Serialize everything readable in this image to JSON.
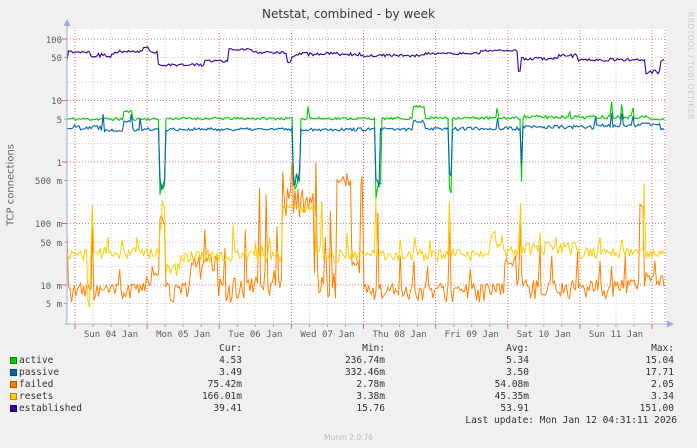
{
  "title": "Netstat, combined - by week",
  "y_axis": {
    "title": "TCP connections",
    "ticks": [
      {
        "label": "100",
        "value": 100,
        "major": true
      },
      {
        "label": "50",
        "value": 50,
        "major": false
      },
      {
        "label": "10",
        "value": 10,
        "major": true
      },
      {
        "label": "5",
        "value": 5,
        "major": false
      },
      {
        "label": "1",
        "value": 1,
        "major": true
      },
      {
        "label": "500 m",
        "value": 0.5,
        "major": false
      },
      {
        "label": "100 m",
        "value": 0.1,
        "major": true
      },
      {
        "label": "50 m",
        "value": 0.05,
        "major": false
      },
      {
        "label": "10 m",
        "value": 0.01,
        "major": true
      },
      {
        "label": "5 m",
        "value": 0.005,
        "major": false
      }
    ],
    "minor_gridlines": [
      50,
      20,
      5,
      2,
      0.5,
      0.2,
      0.05,
      0.02,
      0.005
    ]
  },
  "x_axis": {
    "labels": [
      "Sun 04 Jan",
      "Mon 05 Jan",
      "Tue 06 Jan",
      "Wed 07 Jan",
      "Thu 08 Jan",
      "Fri 09 Jan",
      "Sat 10 Jan",
      "Sun 11 Jan"
    ]
  },
  "legend": {
    "columns": [
      "Cur:",
      "Min:",
      "Avg:",
      "Max:"
    ],
    "rows": [
      {
        "label": "active",
        "color": "#00CC00",
        "cur": "4.53",
        "min": "236.74m",
        "avg": "5.34",
        "max": "15.04"
      },
      {
        "label": "passive",
        "color": "#0066B3",
        "cur": "3.49",
        "min": "332.46m",
        "avg": "3.50",
        "max": "17.71"
      },
      {
        "label": "failed",
        "color": "#FF8000",
        "cur": "75.42m",
        "min": "2.78m",
        "avg": "54.08m",
        "max": "2.05"
      },
      {
        "label": "resets",
        "color": "#FFCC00",
        "cur": "166.01m",
        "min": "3.38m",
        "avg": "45.35m",
        "max": "3.34"
      },
      {
        "label": "established",
        "color": "#330099",
        "cur": "39.41",
        "min": "15.76",
        "avg": "53.91",
        "max": "151.00"
      }
    ],
    "last_update": "Last update: Mon Jan 12 04:31:11 2026"
  },
  "watermarks": {
    "right": "RRDTOOL / TOBI OETIKER",
    "bottom": "Munin 2.0.76"
  },
  "colors": {
    "background": "#F0F0F0",
    "canvas": "#FFFFFF",
    "major_grid": "#E07D7D",
    "minor_grid": "#CACACA",
    "axis": "#A5ABE0",
    "axis_text": "#5E5E5E",
    "legend_text": "#333333"
  },
  "chart_data": {
    "type": "line",
    "log_scale": true,
    "ylabel": "TCP connections",
    "y_displayed_range": [
      0.0023,
      140
    ],
    "x_unit": "days since Sun 04 Jan 00:00 (visible span -0.11 to 8.18, ends Mon Jan 12 ~04:30)",
    "grid": "red dotted decades / gray dotted 2-5 steps, red dotted at midnights, gray dotted at 6h",
    "series": [
      {
        "name": "active",
        "color": "#00CC00",
        "seed": 11,
        "width": 1.1,
        "segments": [
          [
            -0.11,
            0.67,
            5.0,
            0.06
          ],
          [
            0.67,
            0.8,
            6.6,
            0.05
          ],
          [
            0.8,
            1.16,
            5.0,
            0.05
          ],
          [
            1.16,
            1.26,
            0.38,
            0.25
          ],
          [
            1.26,
            3.02,
            5.1,
            0.05
          ],
          [
            3.02,
            3.13,
            0.5,
            0.3
          ],
          [
            3.13,
            4.16,
            5.1,
            0.05
          ],
          [
            4.16,
            4.24,
            0.36,
            0.3
          ],
          [
            4.24,
            4.69,
            5.1,
            0.05
          ],
          [
            4.69,
            4.85,
            8.0,
            0.04
          ],
          [
            4.85,
            5.18,
            5.2,
            0.05
          ],
          [
            5.18,
            5.23,
            0.4,
            0.3
          ],
          [
            5.23,
            6.17,
            5.2,
            0.05
          ],
          [
            6.17,
            6.21,
            0.6,
            0.3
          ],
          [
            6.21,
            7.97,
            5.4,
            0.07
          ],
          [
            7.97,
            8.19,
            4.9,
            0.05
          ]
        ],
        "spikes": [
          [
            3.23,
            8.0
          ],
          [
            5.85,
            7.5
          ],
          [
            6.86,
            6.5
          ],
          [
            7.44,
            9.5
          ],
          [
            7.58,
            8.6
          ],
          [
            7.74,
            7.6
          ]
        ]
      },
      {
        "name": "passive",
        "color": "#0066B3",
        "seed": 22,
        "width": 1.1,
        "segments": [
          [
            -0.11,
            0.35,
            3.7,
            0.1
          ],
          [
            0.35,
            0.67,
            3.3,
            0.06
          ],
          [
            0.67,
            0.8,
            4.7,
            0.05
          ],
          [
            0.8,
            1.16,
            3.4,
            0.07
          ],
          [
            1.16,
            1.26,
            0.45,
            0.25
          ],
          [
            1.26,
            3.02,
            3.4,
            0.06
          ],
          [
            3.02,
            3.12,
            0.55,
            0.3
          ],
          [
            3.12,
            4.16,
            3.4,
            0.06
          ],
          [
            4.16,
            4.23,
            0.45,
            0.3
          ],
          [
            4.23,
            4.69,
            3.4,
            0.06
          ],
          [
            4.69,
            4.85,
            4.6,
            0.05
          ],
          [
            4.85,
            5.18,
            3.5,
            0.06
          ],
          [
            5.18,
            5.23,
            0.6,
            0.35
          ],
          [
            5.23,
            6.17,
            3.5,
            0.07
          ],
          [
            6.17,
            6.21,
            0.8,
            0.3
          ],
          [
            6.21,
            7.21,
            3.7,
            0.07
          ],
          [
            7.21,
            7.83,
            3.9,
            0.06
          ],
          [
            7.83,
            8.11,
            4.1,
            0.05
          ],
          [
            8.11,
            8.19,
            3.5,
            0.05
          ]
        ],
        "spikes": [
          [
            0.39,
            6.0
          ],
          [
            0.78,
            6.0
          ],
          [
            0.9,
            5.2
          ],
          [
            5.86,
            5.2
          ],
          [
            7.22,
            5.6
          ],
          [
            7.44,
            6.2
          ],
          [
            7.58,
            6.2
          ],
          [
            7.74,
            5.6
          ]
        ]
      },
      {
        "name": "failed",
        "color": "#FF8000",
        "seed": 33,
        "width": 1.0,
        "segments": [
          [
            -0.11,
            0.9,
            0.008,
            0.35
          ],
          [
            0.9,
            1.16,
            0.012,
            0.4
          ],
          [
            1.16,
            1.26,
            0.09,
            0.5
          ],
          [
            1.26,
            1.59,
            0.008,
            0.35
          ],
          [
            1.59,
            1.98,
            0.022,
            0.45
          ],
          [
            1.98,
            2.5,
            0.009,
            0.45
          ],
          [
            2.5,
            2.88,
            0.012,
            0.5
          ],
          [
            2.88,
            3.3,
            0.25,
            0.5
          ],
          [
            3.3,
            3.62,
            0.012,
            0.5
          ],
          [
            3.62,
            3.84,
            0.5,
            0.25
          ],
          [
            3.84,
            3.95,
            0.02,
            0.4
          ],
          [
            3.95,
            3.99,
            0.45,
            0.3
          ],
          [
            3.99,
            5.96,
            0.008,
            0.35
          ],
          [
            5.96,
            6.11,
            0.028,
            0.4
          ],
          [
            6.11,
            6.21,
            0.012,
            0.4
          ],
          [
            6.21,
            7.83,
            0.009,
            0.35
          ],
          [
            7.83,
            7.88,
            0.19,
            0.2
          ],
          [
            7.88,
            8.17,
            0.012,
            0.35
          ],
          [
            8.17,
            8.19,
            0.07,
            0.1
          ]
        ],
        "spikes": [
          [
            0.24,
            0.09
          ],
          [
            0.62,
            0.018
          ],
          [
            1.07,
            0.02
          ],
          [
            1.21,
            0.12
          ],
          [
            1.8,
            0.08
          ],
          [
            2.08,
            0.04
          ],
          [
            2.36,
            0.08
          ],
          [
            2.56,
            0.38
          ],
          [
            2.65,
            0.3
          ],
          [
            2.8,
            0.09
          ],
          [
            2.88,
            0.7
          ],
          [
            3.01,
            1.0
          ],
          [
            3.34,
            1.0
          ],
          [
            3.47,
            0.06
          ],
          [
            3.54,
            0.16
          ],
          [
            3.77,
            0.65
          ],
          [
            3.98,
            0.6
          ],
          [
            4.2,
            0.15
          ],
          [
            4.51,
            0.03
          ],
          [
            4.7,
            0.025
          ],
          [
            4.89,
            0.02
          ],
          [
            5.2,
            0.11
          ],
          [
            5.48,
            0.018
          ],
          [
            6.18,
            0.1
          ],
          [
            6.45,
            0.045
          ],
          [
            6.61,
            0.03
          ],
          [
            6.97,
            0.035
          ],
          [
            7.28,
            0.025
          ],
          [
            7.44,
            0.02
          ],
          [
            7.63,
            0.03
          ],
          [
            8.04,
            0.025
          ]
        ]
      },
      {
        "name": "resets",
        "color": "#FFCC00",
        "seed": 44,
        "width": 1.0,
        "segments": [
          [
            -0.11,
            0.18,
            0.032,
            0.2
          ],
          [
            0.18,
            0.22,
            0.005,
            0.15
          ],
          [
            0.22,
            1.16,
            0.034,
            0.22
          ],
          [
            1.16,
            1.26,
            0.12,
            0.4
          ],
          [
            1.26,
            1.46,
            0.018,
            0.3
          ],
          [
            1.46,
            2.88,
            0.03,
            0.25
          ],
          [
            2.88,
            3.34,
            0.18,
            0.15
          ],
          [
            3.34,
            3.41,
            0.04,
            0.2
          ],
          [
            3.41,
            3.99,
            0.03,
            0.25
          ],
          [
            3.99,
            5.75,
            0.031,
            0.22
          ],
          [
            5.75,
            5.93,
            0.055,
            0.25
          ],
          [
            5.93,
            6.21,
            0.035,
            0.2
          ],
          [
            6.21,
            7.0,
            0.04,
            0.25
          ],
          [
            7.0,
            7.9,
            0.034,
            0.22
          ],
          [
            7.9,
            8.19,
            0.032,
            0.15
          ]
        ],
        "spikes": [
          [
            0.24,
            0.2
          ],
          [
            0.46,
            0.06
          ],
          [
            0.65,
            0.055
          ],
          [
            0.86,
            0.06
          ],
          [
            1.21,
            0.24
          ],
          [
            2.19,
            0.095
          ],
          [
            2.36,
            0.04
          ],
          [
            2.5,
            0.05
          ],
          [
            2.59,
            0.045
          ],
          [
            2.7,
            0.06
          ],
          [
            3.42,
            0.23
          ],
          [
            3.77,
            0.07
          ],
          [
            4.17,
            0.25
          ],
          [
            4.51,
            0.055
          ],
          [
            4.71,
            0.06
          ],
          [
            4.92,
            0.055
          ],
          [
            5.19,
            0.23
          ],
          [
            5.82,
            0.075
          ],
          [
            6.18,
            0.215
          ],
          [
            6.45,
            0.07
          ],
          [
            6.67,
            0.06
          ],
          [
            7.28,
            0.06
          ],
          [
            7.58,
            0.055
          ],
          [
            7.89,
            0.45
          ]
        ]
      },
      {
        "name": "established",
        "color": "#330099",
        "seed": 55,
        "width": 1.1,
        "segments": [
          [
            -0.11,
            0.21,
            62,
            0.05
          ],
          [
            0.21,
            0.55,
            55,
            0.09
          ],
          [
            0.55,
            0.94,
            62,
            0.05
          ],
          [
            0.94,
            1.03,
            74,
            0.04
          ],
          [
            1.03,
            1.15,
            62,
            0.05
          ],
          [
            1.15,
            1.21,
            38,
            0.06
          ],
          [
            1.21,
            1.8,
            38,
            0.05
          ],
          [
            1.8,
            2.12,
            44,
            0.05
          ],
          [
            2.12,
            2.45,
            68,
            0.03
          ],
          [
            2.45,
            2.94,
            60,
            0.05
          ],
          [
            2.94,
            3.0,
            43,
            0.05
          ],
          [
            3.0,
            3.06,
            52,
            0.04
          ],
          [
            3.06,
            3.95,
            57,
            0.07
          ],
          [
            3.95,
            4.85,
            54,
            0.05
          ],
          [
            4.85,
            5.62,
            58,
            0.04
          ],
          [
            5.62,
            6.14,
            65,
            0.03
          ],
          [
            6.14,
            6.18,
            30,
            0.05
          ],
          [
            6.18,
            6.7,
            48,
            0.05
          ],
          [
            6.7,
            6.97,
            54,
            0.07
          ],
          [
            6.97,
            7.9,
            46,
            0.05
          ],
          [
            7.9,
            8.12,
            29,
            0.08
          ],
          [
            8.12,
            8.19,
            45,
            0.04
          ]
        ],
        "spikes": []
      }
    ]
  }
}
